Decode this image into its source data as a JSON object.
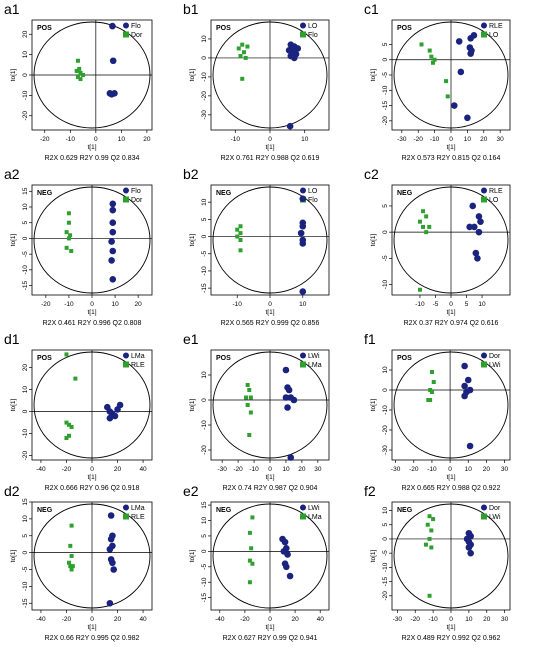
{
  "colors": {
    "series_a": "#1a237e",
    "series_b": "#2ea02e",
    "axis": "#000000"
  },
  "chart_data": [
    {
      "panel": "a1",
      "mode": "POS",
      "type": "scatter",
      "xlabel": "t[1]",
      "ylabel": "to[1]",
      "xlim": [
        -25,
        22
      ],
      "ylim": [
        -27,
        27
      ],
      "xticks": [
        -20,
        -10,
        0,
        10,
        20
      ],
      "yticks": [
        -20,
        -10,
        0,
        10,
        20
      ],
      "series": [
        {
          "name": "Flo",
          "marker": "circle",
          "points": [
            [
              6.5,
              24
            ],
            [
              6.8,
              7
            ],
            [
              5.5,
              -9
            ],
            [
              6.2,
              -9.5
            ],
            [
              7.3,
              -9
            ]
          ]
        },
        {
          "name": "Dor",
          "marker": "square",
          "points": [
            [
              -7,
              7
            ],
            [
              -6.5,
              3
            ],
            [
              -7.5,
              2
            ],
            [
              -6,
              1
            ],
            [
              -5,
              0
            ],
            [
              -7,
              -1
            ],
            [
              -6,
              -2
            ]
          ]
        }
      ],
      "stats": "R2X 0.629  R2Y 0.99  Q2 0.834"
    },
    {
      "panel": "b1",
      "mode": "POS",
      "type": "scatter",
      "xlabel": "t[1]",
      "ylabel": "to[1]",
      "xlim": [
        -17,
        17
      ],
      "ylim": [
        -38,
        20
      ],
      "xticks": [
        -10,
        0,
        10
      ],
      "yticks": [
        -30,
        -20,
        -10,
        0,
        10
      ],
      "series": [
        {
          "name": "LO",
          "marker": "circle",
          "points": [
            [
              6,
              7
            ],
            [
              7,
              6
            ],
            [
              8,
              5
            ],
            [
              5.5,
              4
            ],
            [
              6.5,
              3
            ],
            [
              7.5,
              2
            ],
            [
              6,
              1
            ],
            [
              7,
              0
            ],
            [
              6.5,
              5
            ],
            [
              5.8,
              -36
            ]
          ]
        },
        {
          "name": "Flo",
          "marker": "square",
          "points": [
            [
              -8,
              7
            ],
            [
              -6.5,
              6
            ],
            [
              -9,
              5
            ],
            [
              -7.5,
              3
            ],
            [
              -8.5,
              1
            ],
            [
              -7,
              0
            ],
            [
              -8,
              -11
            ]
          ]
        }
      ],
      "stats": "R2X 0.761  R2Y 0.988  Q2 0.619"
    },
    {
      "panel": "c1",
      "mode": "POS",
      "type": "scatter",
      "xlabel": "t[1]",
      "ylabel": "to[1]",
      "xlim": [
        -36,
        36
      ],
      "ylim": [
        -23,
        13
      ],
      "xticks": [
        -30,
        -20,
        -10,
        0,
        10,
        20,
        30
      ],
      "yticks": [
        -20,
        -15,
        -10,
        -5,
        0,
        5
      ],
      "series": [
        {
          "name": "RLE",
          "marker": "circle",
          "points": [
            [
              14,
              8
            ],
            [
              12,
              7
            ],
            [
              5,
              6
            ],
            [
              11.5,
              4
            ],
            [
              12.5,
              3
            ],
            [
              12,
              2
            ],
            [
              6,
              -4
            ],
            [
              2,
              -15
            ],
            [
              10,
              -19
            ]
          ]
        },
        {
          "name": "LO",
          "marker": "square",
          "points": [
            [
              -18,
              5
            ],
            [
              -13,
              3
            ],
            [
              -12,
              1
            ],
            [
              -10,
              0
            ],
            [
              -11,
              -1
            ],
            [
              -3,
              -7
            ],
            [
              -2,
              -12
            ]
          ]
        }
      ],
      "stats": "R2X 0.573  R2Y 0.815  Q2 0.164"
    },
    {
      "panel": "a2",
      "mode": "NEG",
      "type": "scatter",
      "xlabel": "t[1]",
      "ylabel": "to[1]",
      "xlim": [
        -26,
        26
      ],
      "ylim": [
        -18,
        17
      ],
      "xticks": [
        -20,
        -10,
        0,
        10,
        20
      ],
      "yticks": [
        -15,
        -10,
        -5,
        0,
        5,
        10,
        15
      ],
      "series": [
        {
          "name": "Flo",
          "marker": "circle",
          "points": [
            [
              9,
              11
            ],
            [
              9,
              9
            ],
            [
              9,
              5
            ],
            [
              9,
              2
            ],
            [
              8.5,
              -1
            ],
            [
              9,
              -4
            ],
            [
              8.5,
              -7
            ],
            [
              9,
              -13
            ]
          ]
        },
        {
          "name": "Dor",
          "marker": "square",
          "points": [
            [
              -10,
              8
            ],
            [
              -10,
              5
            ],
            [
              -11,
              2
            ],
            [
              -9.5,
              1
            ],
            [
              -10,
              0
            ],
            [
              -11,
              -3
            ],
            [
              -9,
              -4
            ]
          ]
        }
      ],
      "stats": "R2X 0.461  R2Y 0.996  Q2 0.808"
    },
    {
      "panel": "b2",
      "mode": "NEG",
      "type": "scatter",
      "xlabel": "t[1]",
      "ylabel": "to[1]",
      "xlim": [
        -18,
        18
      ],
      "ylim": [
        -17,
        15
      ],
      "xticks": [
        -10,
        0,
        10
      ],
      "yticks": [
        -15,
        -10,
        -5,
        0,
        5,
        10
      ],
      "series": [
        {
          "name": "LO",
          "marker": "circle",
          "points": [
            [
              10,
              11
            ],
            [
              10,
              4
            ],
            [
              10,
              3
            ],
            [
              9.5,
              1
            ],
            [
              10,
              -1
            ],
            [
              10,
              -2
            ],
            [
              10,
              -16
            ]
          ]
        },
        {
          "name": "Flo",
          "marker": "square",
          "points": [
            [
              -9,
              3
            ],
            [
              -10,
              2
            ],
            [
              -9,
              1
            ],
            [
              -10,
              0
            ],
            [
              -9,
              -1
            ],
            [
              -9,
              -4
            ]
          ]
        }
      ],
      "stats": "R2X 0.565  R2Y 0.999  Q2 0.856"
    },
    {
      "panel": "c2",
      "mode": "NEG",
      "type": "scatter",
      "xlabel": "t[1]",
      "ylabel": "to[1]",
      "xlim": [
        -19,
        19
      ],
      "ylim": [
        -12,
        9
      ],
      "xticks": [
        -10,
        -5,
        0,
        5,
        10
      ],
      "yticks": [
        -10,
        -5,
        0,
        5
      ],
      "series": [
        {
          "name": "RLE",
          "marker": "circle",
          "points": [
            [
              7,
              5
            ],
            [
              9,
              3
            ],
            [
              9.5,
              2
            ],
            [
              6,
              1
            ],
            [
              7.5,
              1
            ],
            [
              9,
              0
            ],
            [
              8,
              -4
            ],
            [
              8.5,
              -5
            ]
          ]
        },
        {
          "name": "LO",
          "marker": "square",
          "points": [
            [
              -9,
              4
            ],
            [
              -8,
              3
            ],
            [
              -10,
              2
            ],
            [
              -9,
              1
            ],
            [
              -8,
              0
            ],
            [
              -7,
              1
            ],
            [
              -10,
              -11
            ]
          ]
        }
      ],
      "stats": "R2X 0.37  R2Y 0.974  Q2 0.616"
    },
    {
      "panel": "d1",
      "mode": "POS",
      "type": "scatter",
      "xlabel": "t[1]",
      "ylabel": "to[1]",
      "xlim": [
        -47,
        47
      ],
      "ylim": [
        -22,
        28
      ],
      "xticks": [
        -40,
        -20,
        0,
        20,
        40
      ],
      "yticks": [
        -20,
        -10,
        0,
        10,
        20
      ],
      "series": [
        {
          "name": "LMa",
          "marker": "circle",
          "points": [
            [
              22,
              3
            ],
            [
              12,
              2
            ],
            [
              14,
              0
            ],
            [
              20,
              1
            ],
            [
              16,
              -1
            ],
            [
              18,
              -2
            ],
            [
              14,
              -3
            ]
          ]
        },
        {
          "name": "RLE",
          "marker": "square",
          "points": [
            [
              -20,
              26
            ],
            [
              -13,
              15
            ],
            [
              -20,
              -5
            ],
            [
              -18,
              -6
            ],
            [
              -16,
              -7
            ],
            [
              -20,
              -12
            ],
            [
              -18,
              -11
            ]
          ]
        }
      ],
      "stats": "R2X 0.666  R2Y 0.96  Q2 0.918"
    },
    {
      "panel": "e1",
      "mode": "POS",
      "type": "scatter",
      "xlabel": "t[1]",
      "ylabel": "to[1]",
      "xlim": [
        -37,
        37
      ],
      "ylim": [
        -24,
        20
      ],
      "xticks": [
        -30,
        -20,
        -10,
        0,
        10,
        20,
        30
      ],
      "yticks": [
        -20,
        -10,
        0,
        10
      ],
      "series": [
        {
          "name": "LWi",
          "marker": "circle",
          "points": [
            [
              10,
              12
            ],
            [
              11,
              5
            ],
            [
              12,
              4
            ],
            [
              13,
              1
            ],
            [
              15,
              0
            ],
            [
              10,
              1
            ],
            [
              11,
              -3
            ],
            [
              13,
              -23
            ]
          ]
        },
        {
          "name": "LMa",
          "marker": "square",
          "points": [
            [
              -14,
              6
            ],
            [
              -13,
              4
            ],
            [
              -15,
              1
            ],
            [
              -12,
              1
            ],
            [
              -14,
              -2
            ],
            [
              -12,
              -5
            ],
            [
              -13,
              -14
            ]
          ]
        }
      ],
      "stats": "R2X 0.74  R2Y 0.987  Q2 0.904"
    },
    {
      "panel": "f1",
      "mode": "POS",
      "type": "scatter",
      "xlabel": "t[1]",
      "ylabel": "to[1]",
      "xlim": [
        -32,
        33
      ],
      "ylim": [
        -35,
        20
      ],
      "xticks": [
        -30,
        -20,
        -10,
        0,
        10,
        20,
        30
      ],
      "yticks": [
        -30,
        -20,
        -10,
        0,
        10
      ],
      "series": [
        {
          "name": "Dor",
          "marker": "circle",
          "points": [
            [
              8,
              12
            ],
            [
              10,
              5
            ],
            [
              8,
              2
            ],
            [
              9,
              -1
            ],
            [
              11,
              0
            ],
            [
              8,
              -3
            ],
            [
              11,
              -28
            ]
          ]
        },
        {
          "name": "LWi",
          "marker": "square",
          "points": [
            [
              -10,
              9
            ],
            [
              -9,
              4
            ],
            [
              -11,
              0
            ],
            [
              -10,
              -1
            ],
            [
              -11,
              -5
            ],
            [
              -12,
              -5
            ]
          ]
        }
      ],
      "stats": "R2X 0.665  R2Y 0.988  Q2 0.922"
    },
    {
      "panel": "d2",
      "mode": "NEG",
      "type": "scatter",
      "xlabel": "t[1]",
      "ylabel": "to[1]",
      "xlim": [
        -47,
        47
      ],
      "ylim": [
        -17,
        15
      ],
      "xticks": [
        -40,
        -20,
        0,
        20,
        40
      ],
      "yticks": [
        -15,
        -10,
        -5,
        0,
        5,
        10,
        15
      ],
      "series": [
        {
          "name": "LMa",
          "marker": "circle",
          "points": [
            [
              15,
              11
            ],
            [
              16,
              5
            ],
            [
              15,
              4
            ],
            [
              16,
              2
            ],
            [
              14,
              1
            ],
            [
              15,
              -2
            ],
            [
              16,
              -3
            ],
            [
              17,
              -5
            ],
            [
              14,
              -15
            ]
          ]
        },
        {
          "name": "RLE",
          "marker": "square",
          "points": [
            [
              -16,
              8
            ],
            [
              -17,
              2
            ],
            [
              -16,
              -1
            ],
            [
              -18,
              -3
            ],
            [
              -17,
              -4
            ],
            [
              -15,
              -4
            ],
            [
              -16,
              -5
            ]
          ]
        }
      ],
      "stats": "R2X 0.66  R2Y 0.995  Q2 0.982"
    },
    {
      "panel": "e2",
      "mode": "NEG",
      "type": "scatter",
      "xlabel": "t[1]",
      "ylabel": "to[1]",
      "xlim": [
        -47,
        47
      ],
      "ylim": [
        -19,
        16
      ],
      "xticks": [
        -40,
        -20,
        0,
        20,
        40
      ],
      "yticks": [
        -15,
        -10,
        -5,
        0,
        5,
        10,
        15
      ],
      "series": [
        {
          "name": "LWi",
          "marker": "circle",
          "points": [
            [
              10,
              4
            ],
            [
              12,
              3
            ],
            [
              13,
              1
            ],
            [
              11,
              0
            ],
            [
              14,
              -1
            ],
            [
              12,
              -4
            ],
            [
              13,
              -5
            ],
            [
              16,
              -8
            ]
          ]
        },
        {
          "name": "LMa",
          "marker": "square",
          "points": [
            [
              -14,
              11
            ],
            [
              -16,
              6
            ],
            [
              -15,
              1
            ],
            [
              -16,
              -3
            ],
            [
              -14,
              -4
            ],
            [
              -16,
              -10
            ]
          ]
        }
      ],
      "stats": "R2X 0.627  R2Y 0.99  Q2 0.941"
    },
    {
      "panel": "f2",
      "mode": "NEG",
      "type": "scatter",
      "xlabel": "t[1]",
      "ylabel": "to[1]",
      "xlim": [
        -33,
        33
      ],
      "ylim": [
        -25,
        13
      ],
      "xticks": [
        -30,
        -20,
        -10,
        0,
        10,
        20,
        30
      ],
      "yticks": [
        -20,
        -15,
        -10,
        -5,
        0,
        5,
        10
      ],
      "series": [
        {
          "name": "Dor",
          "marker": "circle",
          "points": [
            [
              10,
              2
            ],
            [
              11,
              1
            ],
            [
              9,
              0
            ],
            [
              10,
              -1
            ],
            [
              11,
              -2
            ],
            [
              10,
              -3
            ],
            [
              11,
              -5
            ]
          ]
        },
        {
          "name": "LWi",
          "marker": "square",
          "points": [
            [
              -12,
              8
            ],
            [
              -10,
              7
            ],
            [
              -13,
              5
            ],
            [
              -11,
              3
            ],
            [
              -12,
              0
            ],
            [
              -14,
              -2
            ],
            [
              -11,
              -3
            ],
            [
              -12,
              -20
            ]
          ]
        }
      ],
      "stats": "R2X 0.489  R2Y 0.992  Q2 0.962"
    }
  ]
}
